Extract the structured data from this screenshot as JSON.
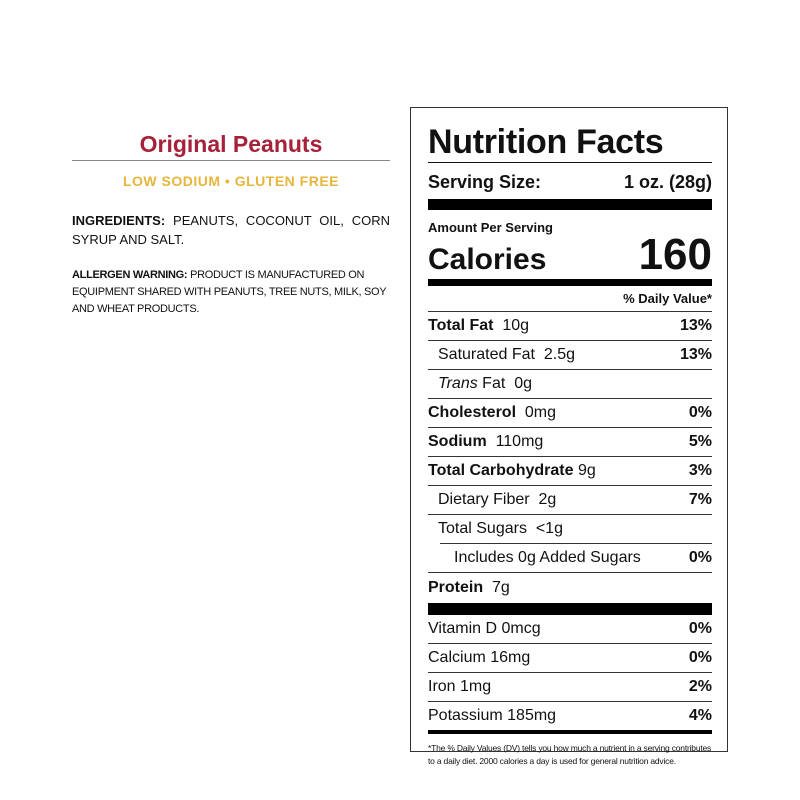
{
  "product": {
    "title": "Original Peanuts",
    "subtitle": "LOW SODIUM • GLUTEN FREE",
    "ingredients": {
      "label": "INGREDIENTS:",
      "text": "PEANUTS, COCONUT OIL, CORN SYRUP AND SALT."
    },
    "allergen": {
      "label": "ALLERGEN WARNING:",
      "text": "PRODUCT IS MANUFACTURED ON EQUIPMENT SHARED WITH PEANUTS, TREE NUTS, MILK, SOY AND WHEAT PRODUCTS."
    }
  },
  "label": {
    "title": "Nutrition Facts",
    "serving": {
      "label": "Serving Size:",
      "value": "1 oz. (28g)"
    },
    "amount_per_serving": "Amount Per Serving",
    "calories": {
      "label": "Calories",
      "value": 160
    },
    "daily_value_header": "% Daily Value*",
    "nutrients": [
      {
        "name": "Total Fat",
        "amount": "10g",
        "dv": "13%"
      },
      {
        "name": "Saturated Fat",
        "amount": "2.5g",
        "dv": "13%"
      },
      {
        "name_italic": "Trans",
        "name": "Fat",
        "amount": "0g"
      },
      {
        "name": "Cholesterol",
        "amount": "0mg",
        "dv": "0%"
      },
      {
        "name": "Sodium",
        "amount": "110mg",
        "dv": "5%"
      },
      {
        "name": "Total Carbohydrate",
        "amount": "9g",
        "dv": "3%"
      },
      {
        "name": "Dietary Fiber",
        "amount": "2g",
        "dv": "7%"
      },
      {
        "name": "Total Sugars",
        "amount": "<1g"
      },
      {
        "name": "Includes 0g Added Sugars",
        "dv": "0%"
      },
      {
        "name": "Protein",
        "amount": "7g"
      }
    ],
    "vitamins": [
      {
        "name": "Vitamin D",
        "amount": "0mcg",
        "dv": "0%"
      },
      {
        "name": "Calcium",
        "amount": "16mg",
        "dv": "0%"
      },
      {
        "name": "Iron",
        "amount": "1mg",
        "dv": "2%"
      },
      {
        "name": "Potassium",
        "amount": "185mg",
        "dv": "4%"
      }
    ],
    "footnote": "*The % Daily Values (DV) tells you how much a nutrient in a serving contributes to a daily diet. 2000 calories a day is used for general nutrition advice."
  }
}
